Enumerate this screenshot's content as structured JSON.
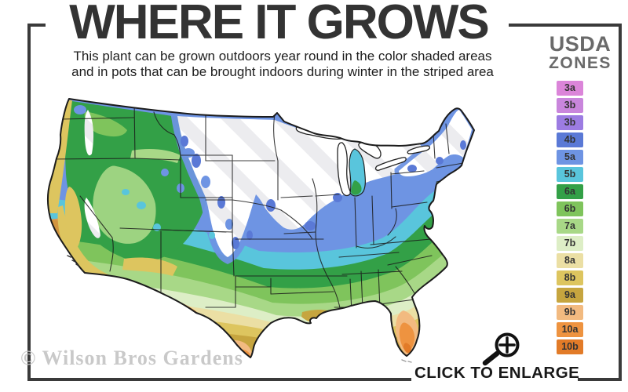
{
  "title": "WHERE IT GROWS",
  "subtitle": {
    "line1": "This plant can be grown outdoors year round in the color shaded areas",
    "line2": "and in pots that can be brought indoors during winter in the striped area"
  },
  "legend": {
    "title_line1": "USDA",
    "title_line2": "ZONES",
    "zones": [
      {
        "label": "3a",
        "color": "#DB85D9"
      },
      {
        "label": "3b",
        "color": "#C986DC"
      },
      {
        "label": "3b",
        "color": "#9C7CE2"
      },
      {
        "label": "4b",
        "color": "#5A79D6"
      },
      {
        "label": "5a",
        "color": "#6E94E3"
      },
      {
        "label": "5b",
        "color": "#59C5DC"
      },
      {
        "label": "6a",
        "color": "#33A047"
      },
      {
        "label": "6b",
        "color": "#7FC45C"
      },
      {
        "label": "7a",
        "color": "#A8D887"
      },
      {
        "label": "7b",
        "color": "#DDEEC6"
      },
      {
        "label": "8a",
        "color": "#EBDFA4"
      },
      {
        "label": "8b",
        "color": "#DDC55F"
      },
      {
        "label": "9a",
        "color": "#C6A53F"
      },
      {
        "label": "9b",
        "color": "#F2BA80"
      },
      {
        "label": "10a",
        "color": "#EE9340"
      },
      {
        "label": "10b",
        "color": "#E27B28"
      }
    ]
  },
  "map_name": "us-hardiness-zone-map",
  "watermark": "© Wilson Bros Gardens",
  "enlarge_label": "CLICK TO ENLARGE",
  "icons": {
    "enlarge": "magnifier-plus-icon"
  },
  "colors": {
    "frame": "#3a3a3a",
    "title": "#333333",
    "legend_title": "#6a6a6a",
    "watermark": "#c9c9c9"
  }
}
